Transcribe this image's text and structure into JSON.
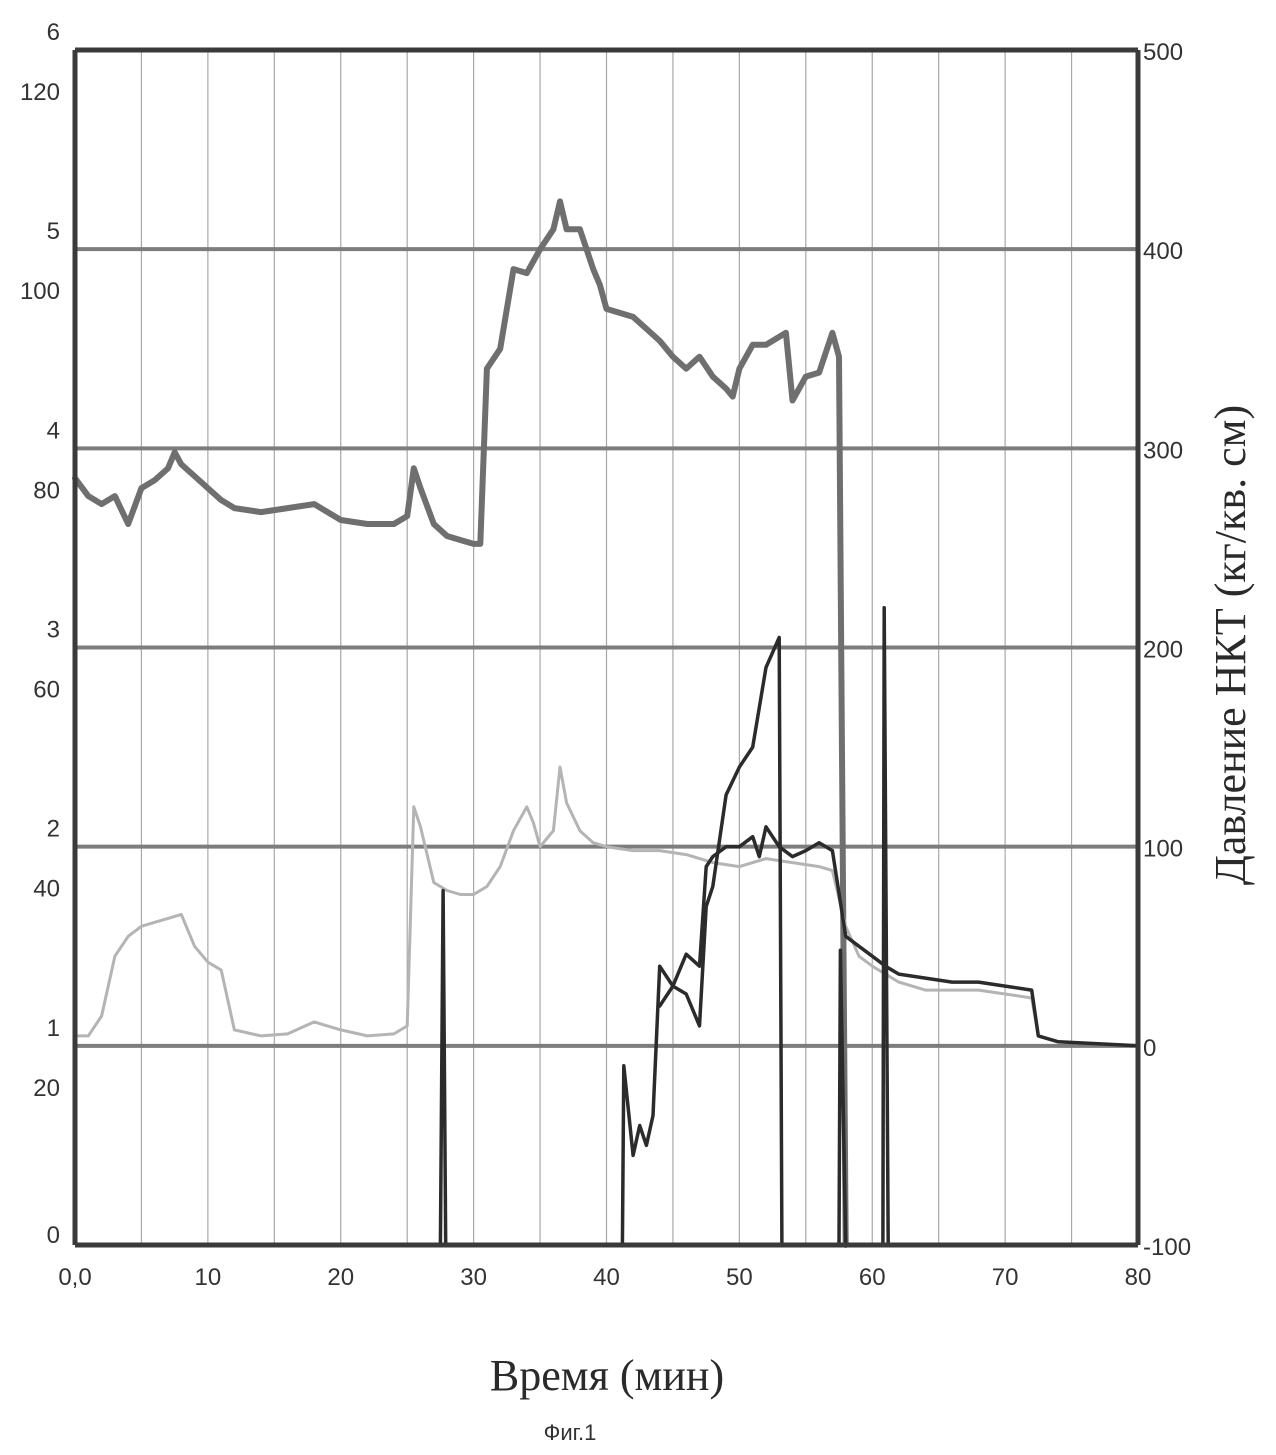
{
  "chart_data": {
    "type": "line",
    "title": "",
    "caption": "Фиг.1",
    "xlabel": "Время (мин)",
    "ylabel_right": "Давление НКТ (кг/кв. см)",
    "xlim": [
      0,
      80
    ],
    "x_ticks": [
      "0,0",
      "10",
      "20",
      "30",
      "40",
      "50",
      "60",
      "70",
      "80"
    ],
    "y1": {
      "ylim": [
        0,
        6
      ],
      "ticks": [
        "0",
        "1",
        "2",
        "3",
        "4",
        "5",
        "6"
      ]
    },
    "y2": {
      "ylim": [
        0,
        120
      ],
      "ticks": [
        "20",
        "40",
        "60",
        "80",
        "100",
        "120"
      ]
    },
    "y_right": {
      "ylim": [
        -100,
        500
      ],
      "ticks": [
        "-100",
        "0",
        "100",
        "200",
        "300",
        "400",
        "500"
      ]
    },
    "grid": true,
    "colors": {
      "upper": "#6f6f6f",
      "light": "#b4b4b4",
      "dark": "#2b2b2b",
      "grid": "#7d7d7d",
      "axis": "#3a3a3a"
    },
    "series": [
      {
        "axis": "right",
        "color": "upper",
        "points": [
          [
            0,
            285
          ],
          [
            1,
            276
          ],
          [
            2,
            272
          ],
          [
            3,
            276
          ],
          [
            4,
            262
          ],
          [
            5,
            280
          ],
          [
            6,
            284
          ],
          [
            7,
            290
          ],
          [
            7.5,
            298
          ],
          [
            8,
            292
          ],
          [
            9,
            286
          ],
          [
            10,
            280
          ],
          [
            11,
            274
          ],
          [
            12,
            270
          ],
          [
            14,
            268
          ],
          [
            16,
            270
          ],
          [
            18,
            272
          ],
          [
            20,
            264
          ],
          [
            22,
            262
          ],
          [
            24,
            262
          ],
          [
            25,
            266
          ],
          [
            25.5,
            290
          ],
          [
            26,
            280
          ],
          [
            27,
            262
          ],
          [
            28,
            256
          ],
          [
            29,
            254
          ],
          [
            30,
            252
          ],
          [
            30.5,
            252
          ],
          [
            31,
            340
          ],
          [
            32,
            350
          ],
          [
            33,
            390
          ],
          [
            34,
            388
          ],
          [
            35,
            400
          ],
          [
            36,
            410
          ],
          [
            36.5,
            424
          ],
          [
            37,
            410
          ],
          [
            38,
            410
          ],
          [
            39,
            390
          ],
          [
            39.5,
            382
          ],
          [
            40,
            370
          ],
          [
            41,
            368
          ],
          [
            42,
            366
          ],
          [
            43,
            360
          ],
          [
            44,
            354
          ],
          [
            45,
            346
          ],
          [
            46,
            340
          ],
          [
            47,
            346
          ],
          [
            48,
            336
          ],
          [
            49,
            330
          ],
          [
            49.5,
            326
          ],
          [
            50,
            340
          ],
          [
            51,
            352
          ],
          [
            52,
            352
          ],
          [
            53,
            356
          ],
          [
            53.5,
            358
          ],
          [
            54,
            324
          ],
          [
            55,
            336
          ],
          [
            56,
            338
          ],
          [
            57,
            358
          ],
          [
            57.5,
            346
          ],
          [
            58,
            -100
          ]
        ]
      },
      {
        "axis": "right",
        "color": "light",
        "points": [
          [
            0,
            5
          ],
          [
            1,
            5
          ],
          [
            2,
            15
          ],
          [
            3,
            45
          ],
          [
            4,
            55
          ],
          [
            5,
            60
          ],
          [
            6,
            62
          ],
          [
            7,
            64
          ],
          [
            8,
            66
          ],
          [
            9,
            50
          ],
          [
            10,
            42
          ],
          [
            11,
            38
          ],
          [
            12,
            8
          ],
          [
            14,
            5
          ],
          [
            16,
            6
          ],
          [
            18,
            12
          ],
          [
            20,
            8
          ],
          [
            22,
            5
          ],
          [
            24,
            6
          ],
          [
            25,
            10
          ],
          [
            25.5,
            120
          ],
          [
            26,
            110
          ],
          [
            27,
            82
          ],
          [
            28,
            78
          ],
          [
            29,
            76
          ],
          [
            30,
            76
          ],
          [
            31,
            80
          ],
          [
            32,
            90
          ],
          [
            33,
            108
          ],
          [
            34,
            120
          ],
          [
            34.5,
            112
          ],
          [
            35,
            100
          ],
          [
            36,
            108
          ],
          [
            36.5,
            140
          ],
          [
            37,
            122
          ],
          [
            38,
            108
          ],
          [
            39,
            102
          ],
          [
            40,
            100
          ],
          [
            42,
            98
          ],
          [
            44,
            98
          ],
          [
            46,
            96
          ],
          [
            48,
            92
          ],
          [
            50,
            90
          ],
          [
            52,
            94
          ],
          [
            54,
            92
          ],
          [
            56,
            90
          ],
          [
            57,
            88
          ],
          [
            58,
            60
          ],
          [
            59,
            45
          ],
          [
            60,
            40
          ],
          [
            61,
            36
          ],
          [
            62,
            32
          ],
          [
            64,
            28
          ],
          [
            66,
            28
          ],
          [
            68,
            28
          ],
          [
            70,
            26
          ],
          [
            72,
            24
          ],
          [
            72.5,
            5
          ],
          [
            74,
            2
          ],
          [
            80,
            0
          ]
        ]
      },
      {
        "axis": "right",
        "color": "dark",
        "points": [
          [
            27.5,
            -100
          ],
          [
            27.7,
            78
          ],
          [
            27.9,
            -100
          ],
          [
            41.2,
            -100
          ],
          [
            41.3,
            -10
          ],
          [
            42,
            -55
          ],
          [
            42.5,
            -40
          ],
          [
            43,
            -50
          ],
          [
            43.5,
            -35
          ],
          [
            44,
            40
          ],
          [
            45,
            30
          ],
          [
            46,
            46
          ],
          [
            47,
            40
          ],
          [
            47.5,
            90
          ],
          [
            48,
            95
          ],
          [
            49,
            100
          ],
          [
            50,
            100
          ],
          [
            51,
            105
          ],
          [
            51.5,
            95
          ],
          [
            52,
            110
          ],
          [
            53,
            100
          ],
          [
            54,
            95
          ],
          [
            55,
            98
          ],
          [
            56,
            102
          ],
          [
            57,
            98
          ],
          [
            58,
            55
          ],
          [
            59,
            50
          ],
          [
            60,
            45
          ],
          [
            61,
            40
          ],
          [
            62,
            36
          ],
          [
            64,
            34
          ],
          [
            66,
            32
          ],
          [
            68,
            32
          ],
          [
            70,
            30
          ],
          [
            72,
            28
          ],
          [
            72.5,
            5
          ],
          [
            74,
            2
          ],
          [
            80,
            0
          ]
        ]
      },
      {
        "axis": "right",
        "color": "dark",
        "points": [
          [
            44,
            20
          ],
          [
            45,
            30
          ],
          [
            46,
            26
          ],
          [
            47,
            10
          ],
          [
            47.5,
            70
          ],
          [
            48,
            80
          ],
          [
            49,
            126
          ],
          [
            50,
            140
          ],
          [
            51,
            150
          ],
          [
            52,
            190
          ],
          [
            53,
            205
          ],
          [
            53.2,
            -100
          ]
        ]
      },
      {
        "axis": "right",
        "color": "dark",
        "points": [
          [
            57.5,
            -100
          ],
          [
            57.6,
            48
          ],
          [
            58,
            -100
          ],
          [
            60.8,
            -100
          ],
          [
            60.9,
            220
          ],
          [
            61.2,
            -100
          ]
        ]
      }
    ]
  }
}
